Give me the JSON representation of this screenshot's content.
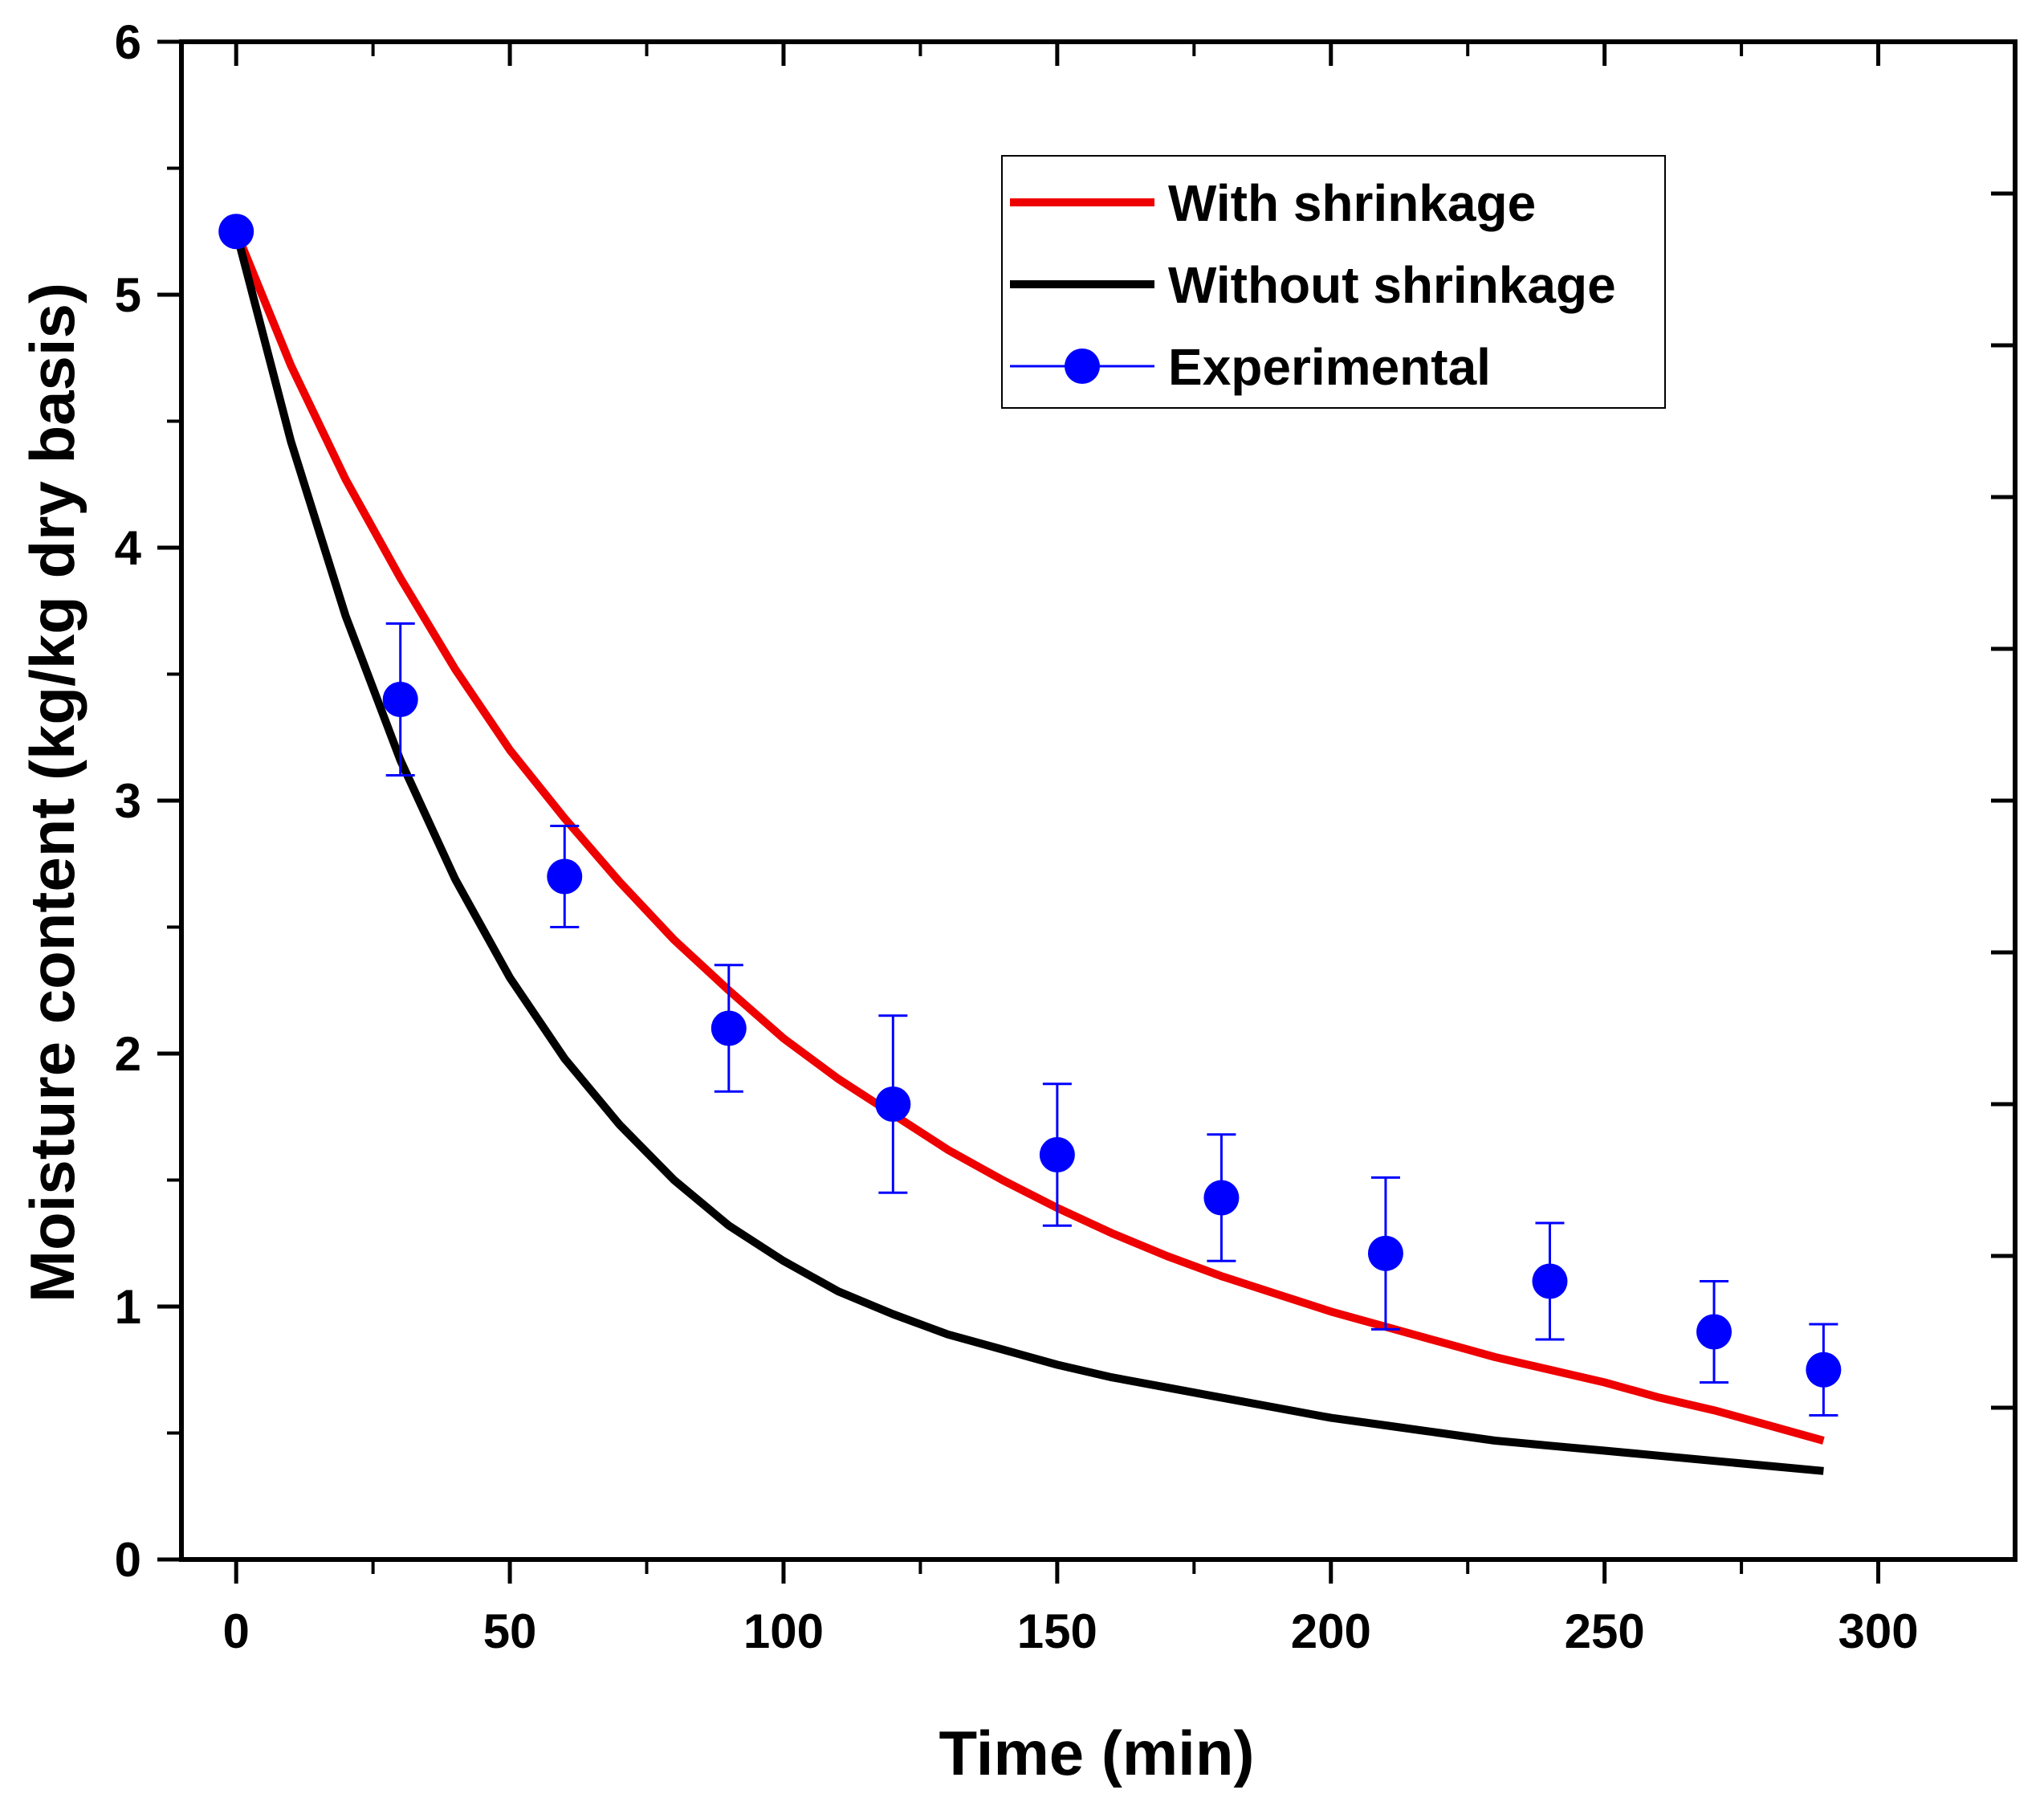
{
  "chart_data": {
    "type": "line",
    "title": "",
    "xlabel": "Time (min)",
    "ylabel": "Moisture content (kg/kg dry basis)",
    "xlim": [
      -10,
      325
    ],
    "ylim": [
      0,
      6
    ],
    "xticks": [
      0,
      50,
      100,
      150,
      200,
      250,
      300
    ],
    "xtick_labels": [
      "0",
      "50",
      "100",
      "150",
      "200",
      "250",
      "300"
    ],
    "yticks": [
      0,
      1,
      2,
      3,
      4,
      5,
      6
    ],
    "ytick_labels": [
      "0",
      "1",
      "2",
      "3",
      "4",
      "5",
      "6"
    ],
    "x_minor_step": 25,
    "y_minor_step": 0.6,
    "legend_position": "top-right",
    "series": [
      {
        "name": "With shrinkage",
        "kind": "line",
        "color": "#ee0000",
        "x": [
          0,
          10,
          20,
          30,
          40,
          50,
          60,
          70,
          80,
          90,
          100,
          110,
          120,
          130,
          140,
          150,
          160,
          170,
          180,
          190,
          200,
          210,
          220,
          230,
          240,
          250,
          260,
          270,
          280,
          290
        ],
        "y": [
          5.25,
          4.72,
          4.27,
          3.88,
          3.52,
          3.2,
          2.93,
          2.68,
          2.45,
          2.25,
          2.06,
          1.9,
          1.76,
          1.62,
          1.5,
          1.39,
          1.29,
          1.2,
          1.12,
          1.05,
          0.98,
          0.92,
          0.86,
          0.8,
          0.75,
          0.7,
          0.64,
          0.59,
          0.53,
          0.47
        ]
      },
      {
        "name": "Without shrinkage",
        "kind": "line",
        "color": "#000000",
        "x": [
          0,
          10,
          20,
          30,
          40,
          50,
          60,
          70,
          80,
          90,
          100,
          110,
          120,
          130,
          140,
          150,
          160,
          170,
          180,
          190,
          200,
          210,
          220,
          230,
          240,
          250,
          260,
          270,
          280,
          290
        ],
        "y": [
          5.25,
          4.42,
          3.73,
          3.16,
          2.69,
          2.3,
          1.98,
          1.72,
          1.5,
          1.32,
          1.18,
          1.06,
          0.97,
          0.89,
          0.83,
          0.77,
          0.72,
          0.68,
          0.64,
          0.6,
          0.56,
          0.53,
          0.5,
          0.47,
          0.45,
          0.43,
          0.41,
          0.39,
          0.37,
          0.35
        ]
      },
      {
        "name": "Experimental",
        "kind": "scatter",
        "color": "#0000ff",
        "x": [
          0,
          30,
          60,
          90,
          120,
          150,
          180,
          210,
          240,
          270,
          290
        ],
        "y": [
          5.25,
          3.4,
          2.7,
          2.1,
          1.8,
          1.6,
          1.43,
          1.21,
          1.1,
          0.9,
          0.75
        ],
        "error": [
          0,
          0.3,
          0.2,
          0.25,
          0.35,
          0.28,
          0.25,
          0.3,
          0.23,
          0.2,
          0.18
        ]
      }
    ]
  }
}
